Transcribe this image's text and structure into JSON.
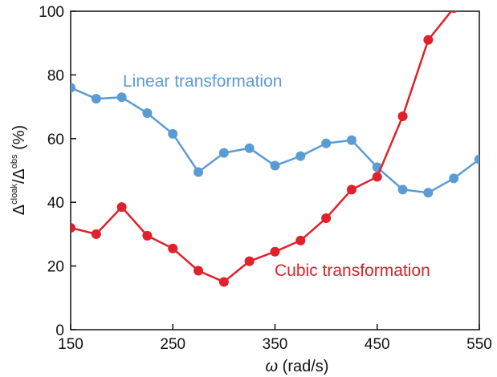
{
  "chart_data": {
    "type": "line",
    "x_ticks": [
      150,
      250,
      350,
      450,
      550
    ],
    "y_ticks": [
      0,
      20,
      40,
      60,
      80,
      100
    ],
    "xlim": [
      150,
      550
    ],
    "ylim": [
      0,
      100
    ],
    "xlabel": "ω (rad/s)",
    "ylabel": "Δcloak/Δobs (%)",
    "ylabel_parts": {
      "delta": "Δ",
      "sup1": "cloak",
      "slash": "/",
      "sup2": "obs",
      "unit": " (%)"
    },
    "xlabel_parts": {
      "omega": "ω",
      "unit": " (rad/s)"
    },
    "grid": false,
    "series": [
      {
        "name": "Linear transformation",
        "color": "#5b9bd5",
        "x": [
          150,
          175,
          200,
          225,
          250,
          275,
          300,
          325,
          350,
          375,
          400,
          425,
          450,
          475,
          500,
          525,
          550
        ],
        "y": [
          76,
          72.5,
          73,
          68,
          61.5,
          49.5,
          55.5,
          57,
          51.5,
          54.5,
          58.5,
          59.5,
          51,
          44,
          43,
          47.5,
          53.5
        ]
      },
      {
        "name": "Cubic transformation",
        "color": "#e0202a",
        "x": [
          150,
          175,
          200,
          225,
          250,
          275,
          300,
          325,
          350,
          375,
          400,
          425,
          450,
          475,
          500,
          525
        ],
        "y": [
          32,
          30,
          38.5,
          29.5,
          25.5,
          18.5,
          15,
          21.5,
          24.5,
          28,
          35,
          44,
          48,
          67,
          91,
          101
        ]
      }
    ]
  }
}
